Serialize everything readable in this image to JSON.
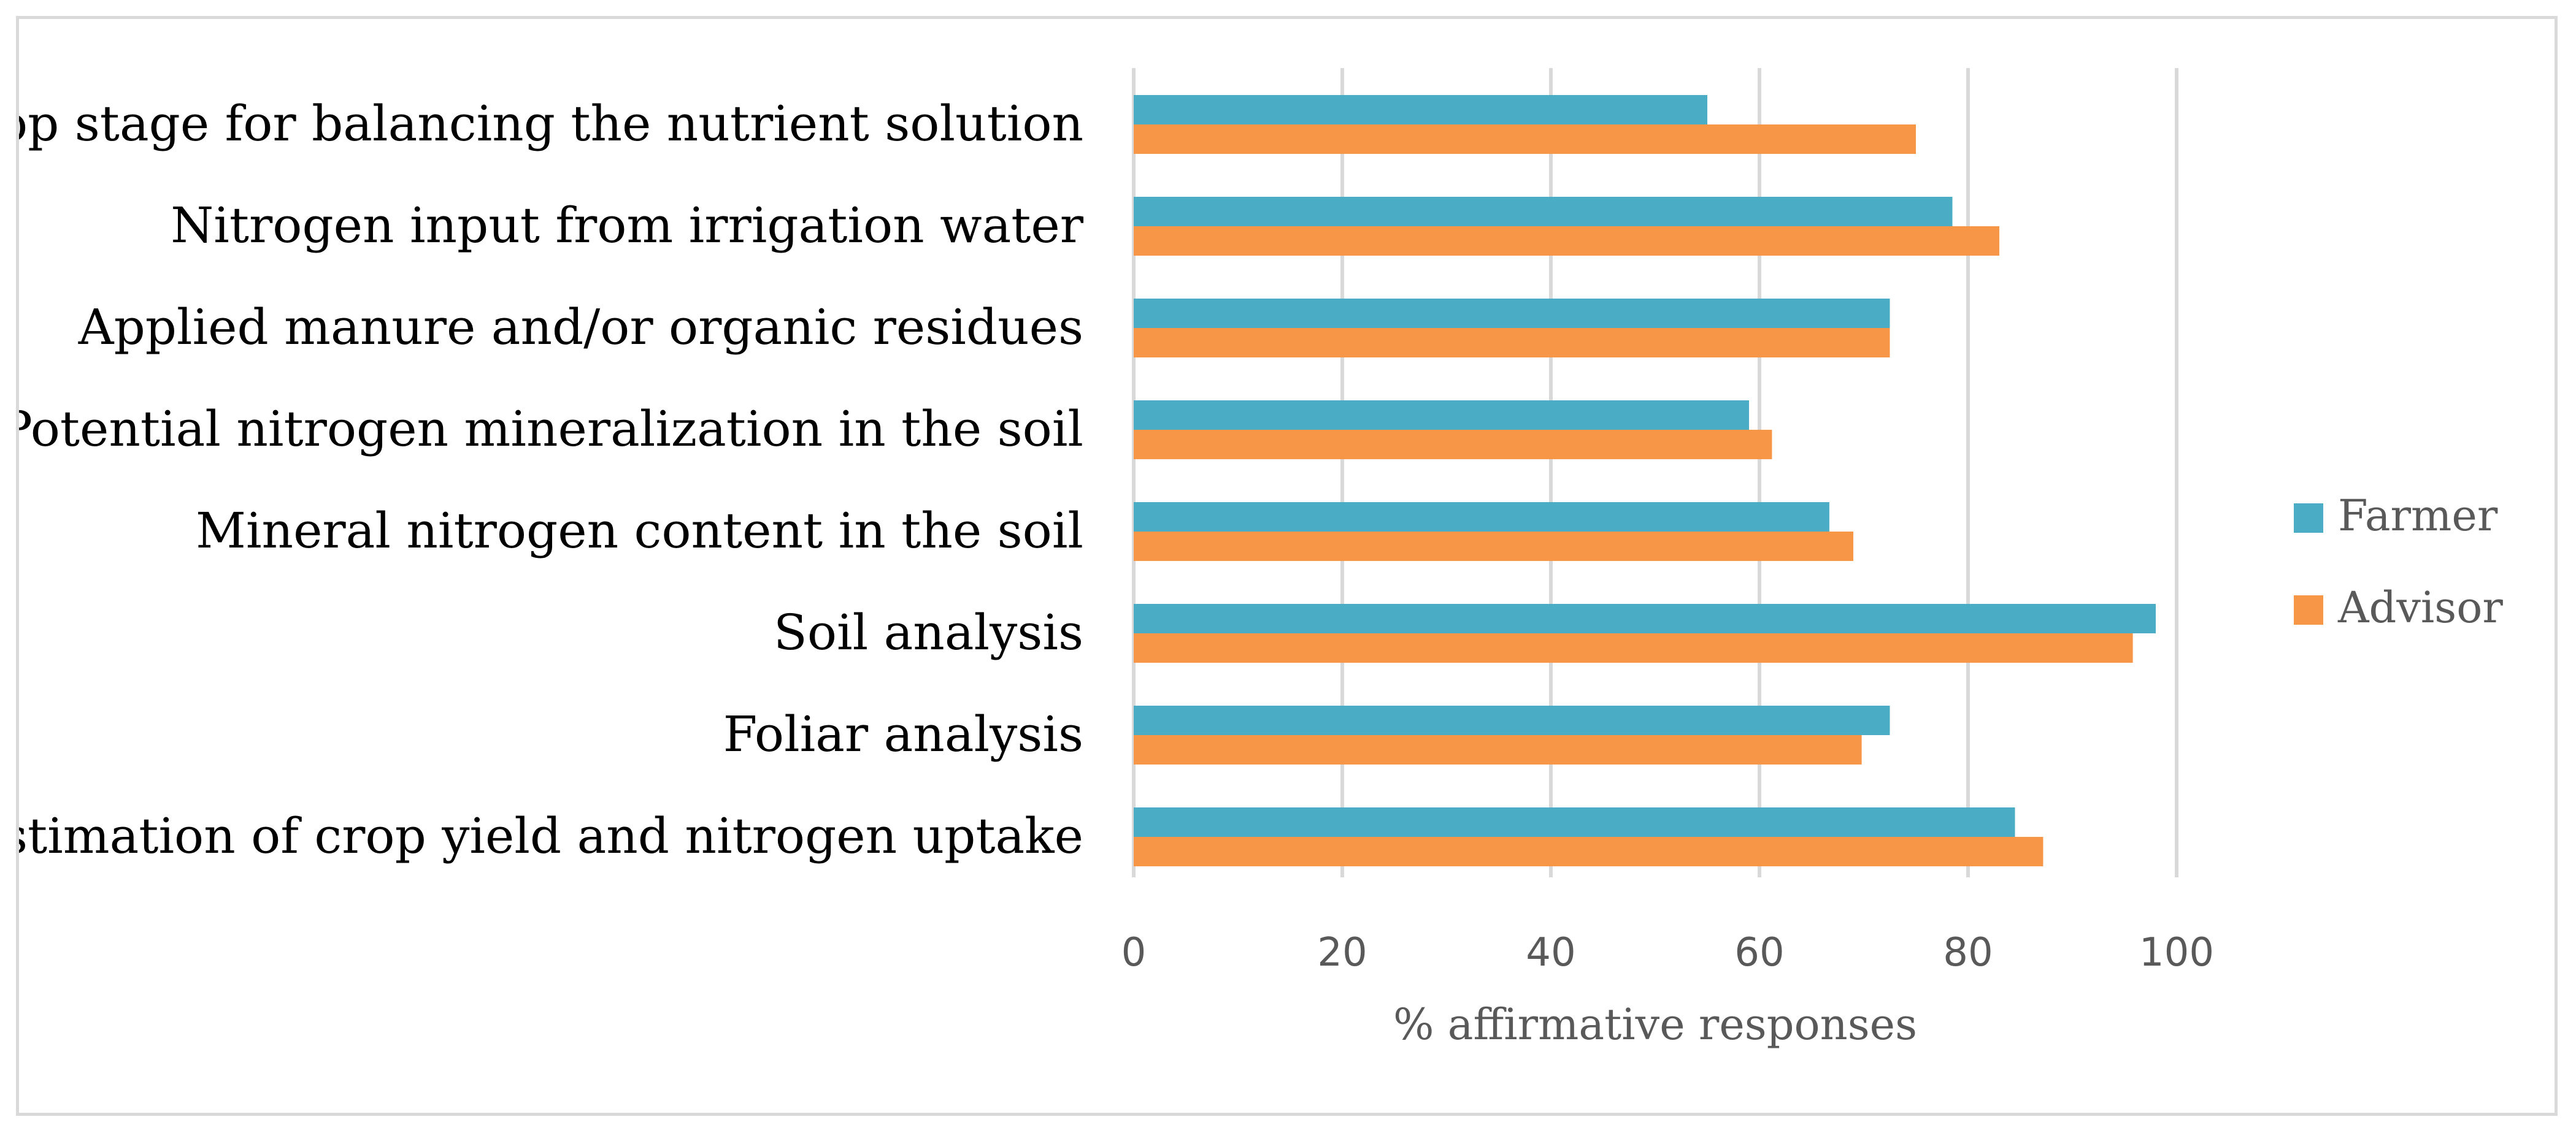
{
  "chart_data": {
    "type": "bar",
    "orientation": "horizontal",
    "categories": [
      "Crop stage for balancing the nutrient solution",
      "Nitrogen input from irrigation water",
      "Applied manure and/or organic residues",
      "Potential nitrogen mineralization in the soil",
      "Mineral nitrogen content in the soil",
      "Soil analysis",
      "Foliar analysis",
      "Estimation of crop yield and nitrogen uptake"
    ],
    "series": [
      {
        "name": "Farmer",
        "color": "#4bacc6",
        "values": [
          55,
          78.5,
          72.5,
          59,
          66.7,
          98,
          72.5,
          84.5
        ]
      },
      {
        "name": "Advisor",
        "color": "#f79646",
        "values": [
          75,
          83,
          72.5,
          61.2,
          69,
          95.8,
          69.8,
          87.2
        ]
      }
    ],
    "xlabel": "% affirmative responses",
    "ylabel": "",
    "xlim": [
      0,
      100
    ],
    "xticks": [
      "0",
      "20",
      "40",
      "60",
      "80",
      "100"
    ],
    "grid": true,
    "legend_position": "right"
  }
}
